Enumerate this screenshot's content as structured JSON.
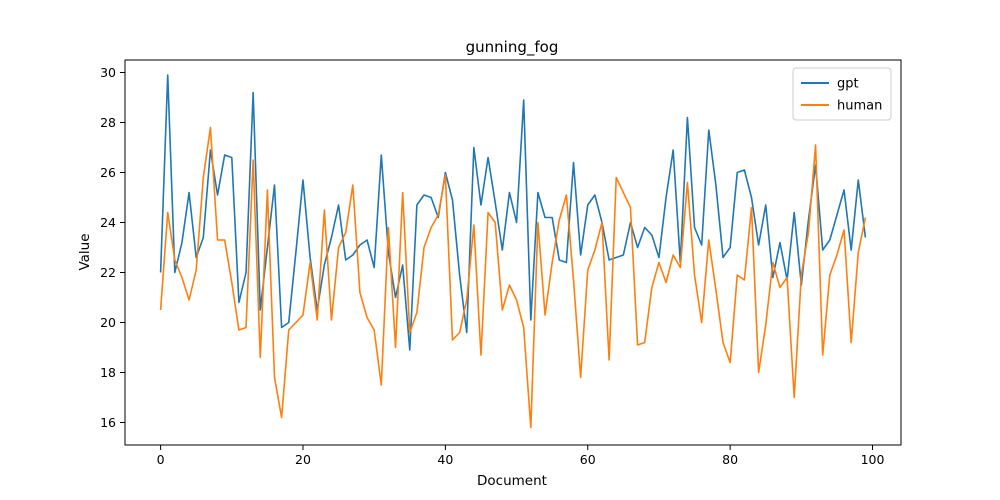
{
  "chart_data": {
    "type": "line",
    "title": "gunning_fog",
    "xlabel": "Document",
    "ylabel": "Value",
    "xlim": [
      -5,
      104
    ],
    "ylim": [
      15.1,
      30.5
    ],
    "xticks": [
      0,
      20,
      40,
      60,
      80,
      100
    ],
    "yticks": [
      16,
      18,
      20,
      22,
      24,
      26,
      28,
      30
    ],
    "legend_position": "top-right",
    "grid": false,
    "series": [
      {
        "name": "gpt",
        "color": "#1f77b4",
        "values": [
          22.0,
          29.9,
          22.0,
          23.2,
          25.2,
          22.6,
          23.4,
          26.9,
          25.1,
          26.7,
          26.6,
          20.8,
          22.0,
          29.2,
          20.5,
          23.0,
          25.5,
          19.8,
          20.0,
          22.8,
          25.7,
          22.6,
          20.5,
          22.3,
          23.4,
          24.7,
          22.5,
          22.7,
          23.1,
          23.3,
          22.2,
          26.7,
          22.8,
          21.0,
          22.3,
          18.9,
          24.7,
          25.1,
          25.0,
          24.2,
          26.0,
          24.9,
          21.9,
          19.6,
          27.0,
          24.7,
          26.6,
          24.8,
          22.9,
          25.2,
          24.0,
          28.9,
          20.1,
          25.2,
          24.2,
          24.2,
          22.5,
          22.4,
          26.4,
          22.7,
          24.7,
          25.1,
          24.0,
          22.5,
          22.6,
          22.7,
          24.0,
          23.0,
          23.8,
          23.5,
          22.6,
          25.0,
          26.9,
          22.4,
          28.2,
          23.8,
          23.1,
          27.7,
          25.5,
          22.6,
          23.0,
          26.0,
          26.1,
          25.0,
          23.1,
          24.7,
          21.8,
          23.2,
          21.7,
          24.4,
          21.5,
          24.1,
          26.3,
          22.9,
          23.3,
          24.3,
          25.3,
          22.9,
          25.7,
          23.4
        ]
      },
      {
        "name": "human",
        "color": "#ff7f0e",
        "values": [
          20.5,
          24.4,
          22.5,
          21.8,
          20.9,
          22.1,
          25.8,
          27.8,
          23.3,
          23.3,
          21.6,
          19.7,
          19.8,
          26.5,
          18.6,
          25.3,
          17.8,
          16.2,
          19.7,
          20.0,
          20.3,
          22.4,
          20.1,
          24.5,
          20.1,
          23.0,
          23.6,
          25.5,
          21.2,
          20.2,
          19.7,
          17.5,
          23.8,
          19.0,
          25.2,
          19.6,
          20.4,
          23.0,
          23.8,
          24.3,
          25.9,
          19.3,
          19.6,
          20.9,
          23.9,
          18.7,
          24.4,
          24.0,
          20.5,
          21.5,
          20.9,
          19.8,
          15.8,
          24.0,
          20.3,
          22.4,
          24.1,
          25.1,
          21.7,
          17.8,
          22.1,
          22.9,
          24.0,
          18.5,
          25.8,
          25.2,
          24.6,
          19.1,
          19.2,
          21.4,
          22.4,
          21.6,
          22.7,
          22.2,
          25.6,
          21.9,
          20.0,
          23.3,
          21.3,
          19.2,
          18.4,
          21.9,
          21.7,
          24.6,
          18.0,
          19.9,
          22.4,
          21.4,
          21.8,
          17.0,
          21.9,
          23.6,
          27.1,
          18.7,
          21.9,
          22.7,
          23.7,
          19.2,
          22.8,
          24.2
        ]
      }
    ]
  }
}
